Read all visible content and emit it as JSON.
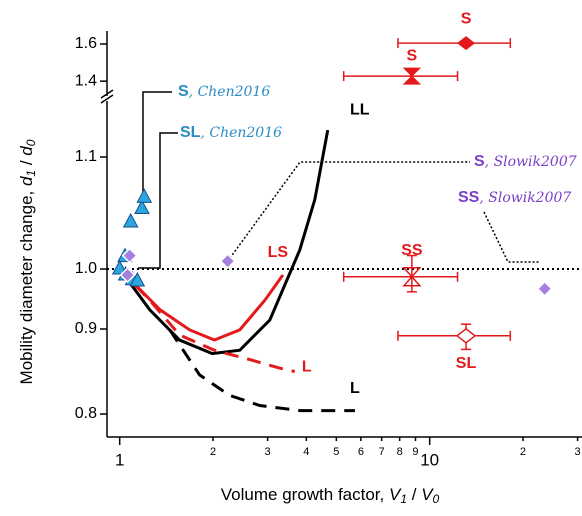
{
  "chart_data": {
    "type": "scatter",
    "xlabel": {
      "text": "Volume growth factor, ",
      "v1": "V",
      "s1": "1",
      "sep": " / ",
      "v2": "V",
      "s2": "0"
    },
    "ylabel": {
      "text": "Mobility diameter change, ",
      "v1": "d",
      "s1": "1",
      "sep": " / ",
      "v2": "d",
      "s2": "0"
    },
    "xscale": "log",
    "xlim": [
      0.91,
      31
    ],
    "xticks": [
      1,
      2,
      3,
      4,
      5,
      6,
      7,
      8,
      9,
      10,
      {
        "value": 20,
        "label": "2"
      },
      {
        "value": 30,
        "label": "3"
      }
    ],
    "ylim": [
      0.773,
      1.15
    ],
    "yticks": [
      0.8,
      0.9,
      {
        "value": 1,
        "label": "1.0"
      },
      1.1
    ],
    "ylim_upper": [
      1.32,
      1.67
    ],
    "yticks_upper": [
      {
        "value": 1.4,
        "label": "1.4"
      },
      {
        "value": 1.6,
        "label": "1.6"
      }
    ],
    "reference_line": 1,
    "series": [
      {
        "name": "LL",
        "color": "#000000",
        "style": "solid",
        "x": [
          1,
          1.25,
          1.56,
          1.99,
          2.44,
          3.05,
          3.81,
          4.26,
          4.69
        ],
        "values": [
          1.0,
          0.932,
          0.887,
          0.871,
          0.875,
          0.915,
          1.017,
          1.062,
          1.124
        ]
      },
      {
        "name": "LS",
        "color": "#e3191c",
        "style": "solid",
        "x": [
          1,
          1.35,
          1.68,
          2.02,
          2.44,
          2.94,
          3.36
        ],
        "values": [
          1.0,
          0.932,
          0.899,
          0.887,
          0.899,
          0.948,
          0.99
        ]
      },
      {
        "name": "L",
        "color": "#e3191c",
        "style": "dashed",
        "x": [
          1,
          1.25,
          1.56,
          2.02,
          2.63,
          3.28,
          3.67
        ],
        "values": [
          1.0,
          0.948,
          0.893,
          0.875,
          0.864,
          0.854,
          0.85
        ]
      },
      {
        "name": "L",
        "color": "#000000",
        "style": "dashed",
        "x": [
          1.45,
          1.81,
          2.26,
          2.83,
          3.81,
          5.74
        ],
        "values": [
          0.899,
          0.846,
          0.822,
          0.81,
          0.804,
          0.804
        ]
      },
      {
        "name": "S",
        "citation": ", Chen2016",
        "color": "#2ba6e0",
        "style": "triangle",
        "x": [
          1.085,
          1.18,
          1.2,
          1.04
        ],
        "values": [
          1.042,
          1.054,
          1.064,
          1.011
        ]
      },
      {
        "name": "SL",
        "citation": ", Chen2016",
        "color": "#2ba6e0",
        "style": "triangle",
        "x": [
          1,
          1.045,
          1.1,
          1.14
        ],
        "values": [
          1.0,
          0.99,
          0.982,
          0.98
        ]
      },
      {
        "name": "S",
        "citation": ", Slowik2007",
        "color": "#a77fe0",
        "style": "diamond",
        "x": [
          1.077,
          2.23
        ],
        "values": [
          1.012,
          1.007
        ]
      },
      {
        "name": "SS",
        "citation": ", Slowik2007",
        "color": "#a77fe0",
        "style": "diamond",
        "x": [
          1.06,
          23.5
        ],
        "values": [
          0.99,
          0.967
        ]
      },
      {
        "name": "S",
        "color": "#e3191c",
        "style": "diamond-filled",
        "axis": "upper",
        "x": [
          13.1
        ],
        "values": [
          1.605
        ],
        "x_err": [
          [
            7.9,
            18.2
          ]
        ],
        "y_err": [
          0.01
        ]
      },
      {
        "name": "S",
        "color": "#e3191c",
        "style": "bowtie-filled",
        "axis": "upper",
        "x": [
          8.76
        ],
        "values": [
          1.427
        ],
        "x_err": [
          [
            5.28,
            12.3
          ]
        ],
        "y_err": [
          0.03
        ]
      },
      {
        "name": "SS",
        "color": "#e3191c",
        "style": "bowtie-open",
        "x": [
          8.76
        ],
        "values": [
          0.987
        ],
        "x_err": [
          [
            5.28,
            12.3
          ]
        ],
        "y_err": [
          0.025
        ]
      },
      {
        "name": "SL",
        "color": "#e3191c",
        "style": "diamond-open",
        "x": [
          13.1
        ],
        "values": [
          0.892
        ],
        "x_err": [
          [
            7.9,
            18.2
          ]
        ],
        "y_err": [
          0.016
        ]
      }
    ]
  }
}
